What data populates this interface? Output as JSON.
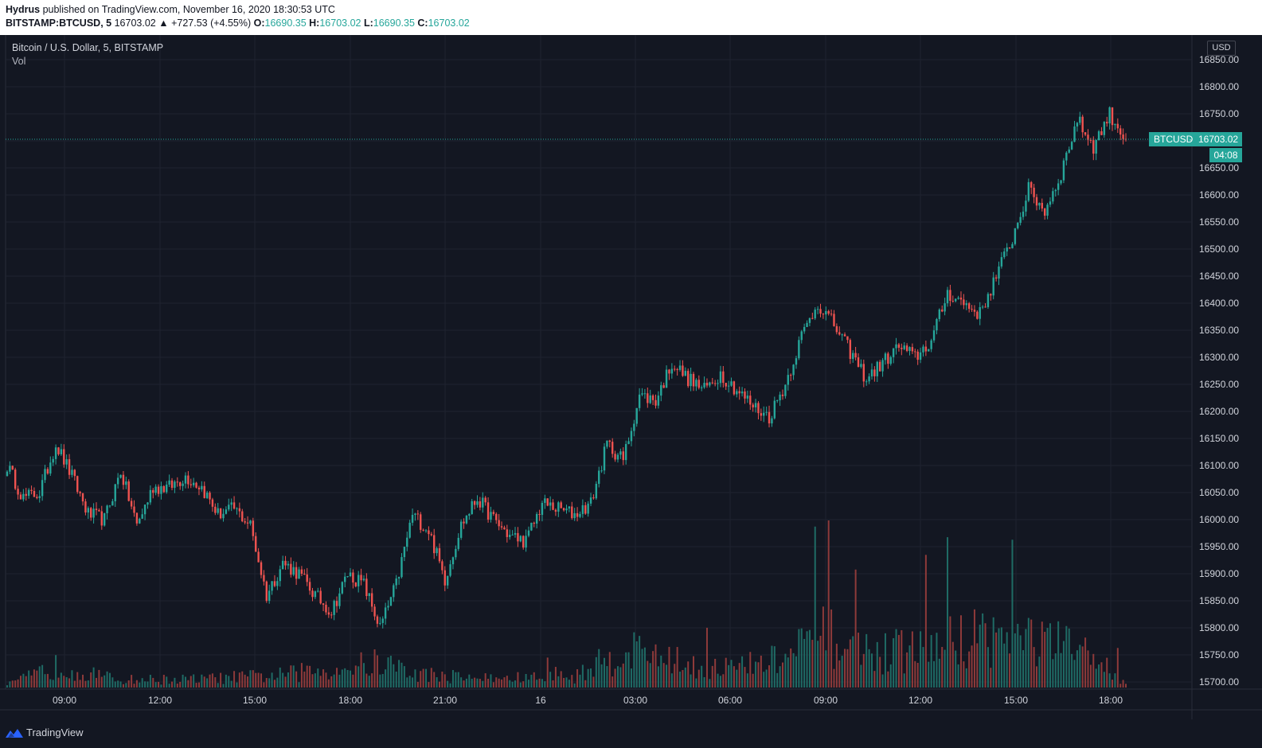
{
  "header": {
    "author": "Hydrus",
    "published_on": "published on TradingView.com, November 16, 2020 18:30:53 UTC",
    "symbol": "BITSTAMP:BTCUSD, 5",
    "last": "16703.02",
    "change": "▲ +727.53 (+4.55%)",
    "o_label": "O:",
    "o_value": "16690.35",
    "h_label": "H:",
    "h_value": "16703.02",
    "l_label": "L:",
    "l_value": "16690.35",
    "c_label": "C:",
    "c_value": "16703.02"
  },
  "legend": {
    "title": "Bitcoin / U.S. Dollar, 5, BITSTAMP",
    "volume": "Vol"
  },
  "price_scale": {
    "currency": "USD",
    "last_symbol": "BTCUSD",
    "last_value": "16703.02",
    "countdown": "04:08"
  },
  "footer": {
    "brand": "TradingView"
  },
  "colors": {
    "background": "#131722",
    "up": "#26a69a",
    "down": "#ef5350",
    "volume_up": "#1f6b65",
    "volume_down": "#8e3a3a",
    "grid": "#1f2330"
  },
  "chart_data": {
    "type": "candlestick",
    "interval": "5",
    "grid": true,
    "y_axis": {
      "range": [
        15685,
        16880
      ],
      "ticks": [
        "16850.00",
        "16800.00",
        "16750.00",
        "16700.00",
        "16650.00",
        "16600.00",
        "16550.00",
        "16500.00",
        "16450.00",
        "16400.00",
        "16350.00",
        "16300.00",
        "16250.00",
        "16200.00",
        "16150.00",
        "16100.00",
        "16050.00",
        "16000.00",
        "15950.00",
        "15900.00",
        "15850.00",
        "15800.00",
        "15750.00",
        "15700.00"
      ]
    },
    "x_axis": {
      "ticks": [
        "09:00",
        "12:00",
        "15:00",
        "18:00",
        "21:00",
        "16",
        "03:00",
        "06:00",
        "09:00",
        "12:00",
        "15:00",
        "18:00"
      ]
    },
    "last_price": 16703.02,
    "close_path": [
      [
        0,
        16100
      ],
      [
        6,
        16040
      ],
      [
        12,
        16050
      ],
      [
        18,
        16140
      ],
      [
        24,
        16080
      ],
      [
        30,
        16010
      ],
      [
        36,
        16000
      ],
      [
        42,
        16090
      ],
      [
        48,
        15990
      ],
      [
        54,
        16060
      ],
      [
        60,
        16060
      ],
      [
        66,
        16080
      ],
      [
        72,
        16060
      ],
      [
        78,
        16010
      ],
      [
        84,
        16020
      ],
      [
        90,
        15990
      ],
      [
        96,
        15860
      ],
      [
        102,
        15920
      ],
      [
        108,
        15900
      ],
      [
        114,
        15860
      ],
      [
        120,
        15830
      ],
      [
        126,
        15900
      ],
      [
        132,
        15880
      ],
      [
        138,
        15800
      ],
      [
        144,
        15880
      ],
      [
        150,
        16010
      ],
      [
        156,
        15980
      ],
      [
        162,
        15890
      ],
      [
        168,
        15990
      ],
      [
        174,
        16040
      ],
      [
        180,
        16000
      ],
      [
        186,
        15970
      ],
      [
        192,
        15960
      ],
      [
        198,
        16030
      ],
      [
        204,
        16020
      ],
      [
        210,
        16010
      ],
      [
        216,
        16030
      ],
      [
        222,
        16140
      ],
      [
        228,
        16110
      ],
      [
        234,
        16230
      ],
      [
        240,
        16220
      ],
      [
        246,
        16290
      ],
      [
        252,
        16260
      ],
      [
        258,
        16240
      ],
      [
        264,
        16270
      ],
      [
        270,
        16240
      ],
      [
        276,
        16210
      ],
      [
        282,
        16190
      ],
      [
        288,
        16250
      ],
      [
        294,
        16340
      ],
      [
        300,
        16400
      ],
      [
        306,
        16360
      ],
      [
        312,
        16310
      ],
      [
        318,
        16260
      ],
      [
        324,
        16290
      ],
      [
        330,
        16320
      ],
      [
        336,
        16300
      ],
      [
        342,
        16330
      ],
      [
        348,
        16420
      ],
      [
        354,
        16400
      ],
      [
        360,
        16380
      ],
      [
        366,
        16450
      ],
      [
        372,
        16520
      ],
      [
        378,
        16610
      ],
      [
        384,
        16570
      ],
      [
        390,
        16640
      ],
      [
        396,
        16740
      ],
      [
        402,
        16690
      ],
      [
        408,
        16750
      ],
      [
        414,
        16703
      ]
    ],
    "volume_path": [
      [
        0,
        5
      ],
      [
        20,
        40
      ],
      [
        40,
        14
      ],
      [
        70,
        15
      ],
      [
        100,
        22
      ],
      [
        140,
        45
      ],
      [
        150,
        25
      ],
      [
        180,
        16
      ],
      [
        210,
        20
      ],
      [
        230,
        70
      ],
      [
        250,
        42
      ],
      [
        270,
        35
      ],
      [
        290,
        55
      ],
      [
        300,
        95
      ],
      [
        320,
        60
      ],
      [
        340,
        70
      ],
      [
        360,
        95
      ],
      [
        380,
        85
      ],
      [
        400,
        60
      ],
      [
        414,
        10
      ]
    ]
  }
}
